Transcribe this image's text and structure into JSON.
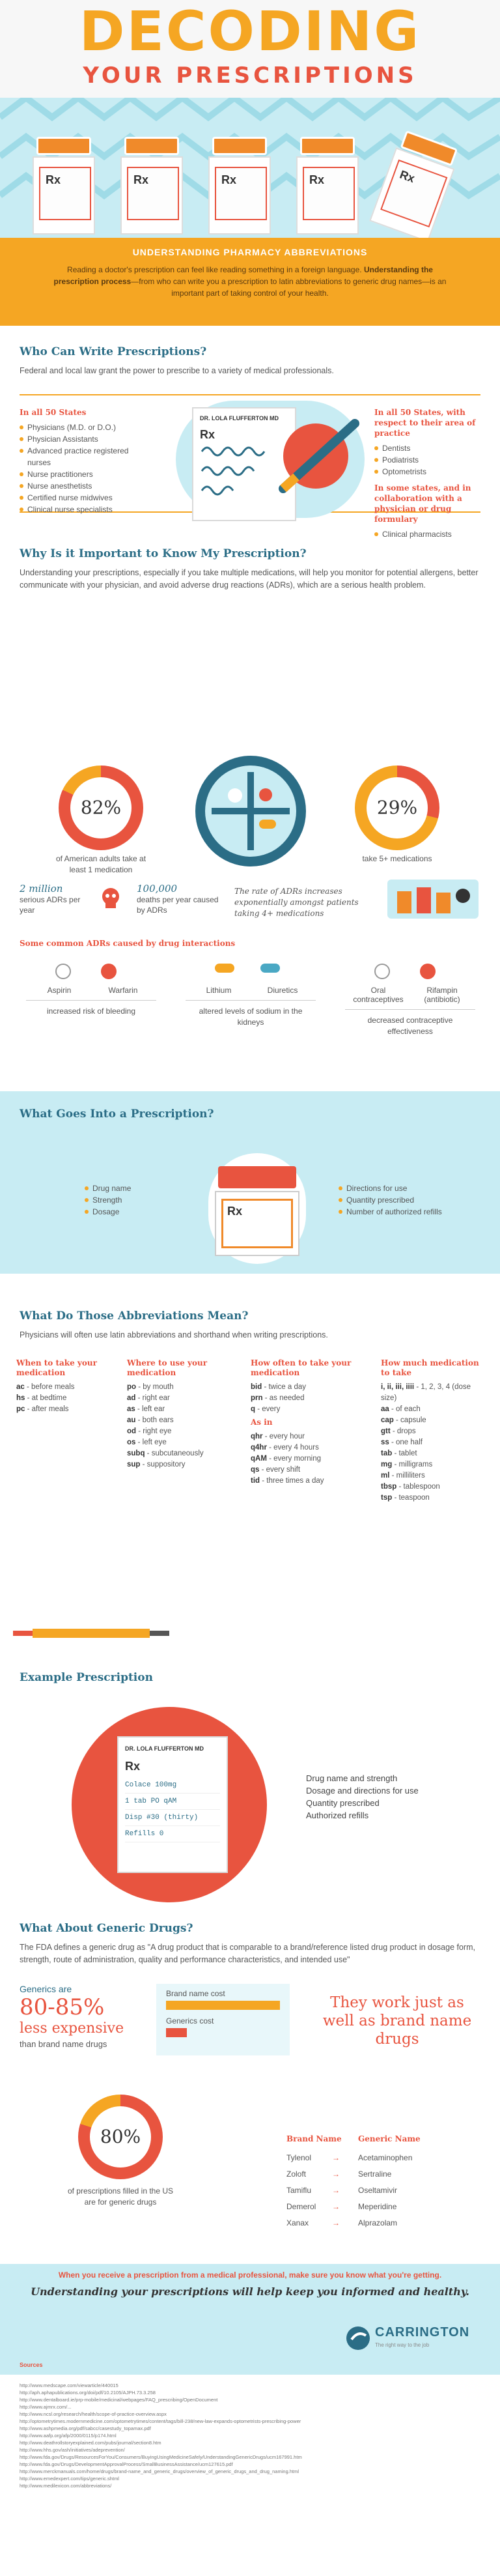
{
  "header": {
    "title_line1": "DECODING",
    "title_line2": "YOUR PRESCRIPTIONS",
    "bottle_label": "Rx",
    "subtitle": "UNDERSTANDING PHARMACY ABBREVIATIONS",
    "intro_p1": "Reading a doctor's prescription can feel like reading something in a foreign language.",
    "intro_p2_bold": "Understanding the prescription process",
    "intro_p2_rest": "—from who can write you a prescription to latin abbreviations to generic drug names—is an important part of taking control of your health."
  },
  "who": {
    "title": "Who Can Write Prescriptions?",
    "text": "Federal and local law grant the power to prescribe to a variety of medical professionals.",
    "left_heading": "In all 50 States",
    "left_items": [
      "Physicians (M.D. or D.O.)",
      "Physician Assistants",
      "Advanced practice registered nurses",
      "Nurse practitioners",
      "Nurse anesthetists",
      "Certified nurse midwives",
      "Clinical nurse specialists"
    ],
    "pad_name": "DR. LOLA FLUFFERTON MD",
    "right_heading1": "In all 50 States, with respect to their area of practice",
    "right_items1": [
      "Dentists",
      "Podiatrists",
      "Optometrists"
    ],
    "right_heading2": "In some states, and in collaboration with a physician or drug formulary",
    "right_items2": [
      "Clinical pharmacists"
    ]
  },
  "why": {
    "title": "Why Is it Important to Know My Prescription?",
    "text": "Understanding your prescriptions, especially if you take multiple medications, will help you monitor for potential allergens, better communicate with your physician, and avoid adverse drug reactions (ADRs), which are a serious health problem.",
    "stat1_value": "82%",
    "stat1_fraction": 0.82,
    "stat1_caption": "of American adults take at least 1 medication",
    "stat2_value": "29%",
    "stat2_fraction": 0.29,
    "stat2_caption": "take 5+ medications",
    "adr_count_big": "2 million",
    "adr_count_rest": "serious ADRs per year",
    "death_big": "100,000",
    "death_rest": "deaths per year caused by ADRs",
    "rate_text": "The rate of ADRs increases exponentially amongst patients taking 4+ medications",
    "interactions_heading": "Some common ADRs caused by drug interactions",
    "interactions": [
      {
        "a": "Aspirin",
        "b": "Warfarin",
        "effect": "increased risk of bleeding"
      },
      {
        "a": "Lithium",
        "b": "Diuretics",
        "effect": "altered levels of sodium in the kidneys"
      },
      {
        "a": "Oral contraceptives",
        "b": "Rifampin (antibiotic)",
        "effect": "decreased contraceptive effectiveness"
      }
    ]
  },
  "goes": {
    "title": "What Goes Into a Prescription?",
    "left": [
      "Drug name",
      "Strength",
      "Dosage"
    ],
    "right": [
      "Directions for use",
      "Quantity prescribed",
      "Number of authorized refills"
    ],
    "bottle_label": "Rx"
  },
  "abbr": {
    "title": "What Do Those Abbreviations Mean?",
    "text": "Physicians will often use latin abbreviations and shorthand when writing prescriptions.",
    "cols": [
      {
        "h": "When to take your medication",
        "rows": [
          [
            "ac",
            "before meals"
          ],
          [
            "hs",
            "at bedtime"
          ],
          [
            "pc",
            "after meals"
          ]
        ]
      },
      {
        "h": "Where to use your medication",
        "rows": [
          [
            "po",
            "by mouth"
          ],
          [
            "ad",
            "right ear"
          ],
          [
            "as",
            "left ear"
          ],
          [
            "au",
            "both ears"
          ],
          [
            "od",
            "right eye"
          ],
          [
            "os",
            "left eye"
          ],
          [
            "subq",
            "subcutaneously"
          ],
          [
            "sup",
            "suppository"
          ]
        ]
      },
      {
        "h": "How often to take your medication",
        "rows": [
          [
            "bid",
            "twice a day"
          ],
          [
            "prn",
            "as needed"
          ],
          [
            "q",
            "every"
          ]
        ],
        "h2": "As in",
        "rows2": [
          [
            "qhr",
            "every hour"
          ],
          [
            "q4hr",
            "every 4 hours"
          ],
          [
            "qAM",
            "every morning"
          ],
          [
            "qs",
            "every shift"
          ],
          [
            "tid",
            "three times a day"
          ]
        ]
      },
      {
        "h": "How much medication to take",
        "rows": [
          [
            "i, ii, iii, iiii",
            "1, 2, 3, 4 (dose size)"
          ],
          [
            "aa",
            "of each"
          ],
          [
            "cap",
            "capsule"
          ],
          [
            "gtt",
            "drops"
          ],
          [
            "ss",
            "one half"
          ],
          [
            "tab",
            "tablet"
          ],
          [
            "mg",
            "milligrams"
          ],
          [
            "ml",
            "milliliters"
          ],
          [
            "tbsp",
            "tablespoon"
          ],
          [
            "tsp",
            "teaspoon"
          ]
        ]
      }
    ]
  },
  "example": {
    "title": "Example Prescription",
    "pad_name": "DR. LOLA FLUFFERTON MD",
    "lines": [
      "Colace 100mg",
      "1 tab PO qAM",
      "Disp #30 (thirty)",
      "Refills 0"
    ],
    "legend": [
      "Drug name and strength",
      "Dosage and directions for use",
      "Quantity prescribed",
      "Authorized refills"
    ]
  },
  "generic": {
    "title": "What About Generic Drugs?",
    "text": "The FDA defines a generic drug as \"A drug product that is comparable to a brand/reference listed drug product in dosage form, strength, route of administration, quality and performance characteristics, and intended use\"",
    "are": "Generics are",
    "pct": "80-85%",
    "less": "less expensive",
    "than": "than brand name drugs",
    "bar1": "Brand name cost",
    "bar2": "Generics cost",
    "bar1_fraction": 1.0,
    "bar2_fraction": 0.18,
    "claim": "They work just as well as brand name drugs",
    "filled_value": "80%",
    "filled_fraction": 0.8,
    "filled_caption": "of prescriptions filled in the US are for generic drugs",
    "brand_h": "Brand Name",
    "generic_h": "Generic Name",
    "pairs": [
      [
        "Tylenol",
        "Acetaminophen"
      ],
      [
        "Zoloft",
        "Sertraline"
      ],
      [
        "Tamiflu",
        "Oseltamivir"
      ],
      [
        "Demerol",
        "Meperidine"
      ],
      [
        "Xanax",
        "Alprazolam"
      ]
    ]
  },
  "footer": {
    "line1": "When you receive a prescription from a medical professional, make sure you know what you're getting.",
    "line2": "Understanding your prescriptions will help keep you informed and healthy.",
    "brand": "CARRINGTON",
    "brand_sub": "The right way to the job",
    "sources_h": "Sources",
    "sources": [
      "http://www.medscape.com/viewarticle/440015",
      "http://aph.aphapublications.org/doi/pdf/10.2105/AJPH.73.3.258",
      "http://www.dentalboard.ie/prp-mobile/medicinal/webpages/FAQ_prescribing/OpenDocument",
      "http://www.ajmrx.com/...",
      "http://www.ncsl.org/research/health/scope-of-practice-overview.aspx",
      "http://optometrytimes.modernmedicine.com/optometrytimes/content/tags/bill-238/new-law-expands-optometrists-prescribing-power",
      "http://www.ashpmedia.org/pdf/sabcc/casestudy_topamax.pdf",
      "http://www.aafp.org/afp/2000/0115/p174.html",
      "http://www.deathrollstoryexplained.com/pubs/journal/section8.htm",
      "http://www.hhs.gov/ash/initiatives/adeprevention/",
      "http://www.fda.gov/Drugs/ResourcesForYou/Consumers/BuyingUsingMedicineSafely/UnderstandingGenericDrugs/ucm167991.htm",
      "http://www.fda.gov/Drugs/DevelopmentApprovalProcess/SmallBusinessAssistance/ucm127615.pdf",
      "http://www.merckmanuals.com/home/drugs/brand-name_and_generic_drugs/overview_of_generic_drugs_and_drug_naming.html",
      "http://www.emedexpert.com/tips/generic.shtml",
      "http://www.medilexicon.com/abbreviations/"
    ]
  }
}
